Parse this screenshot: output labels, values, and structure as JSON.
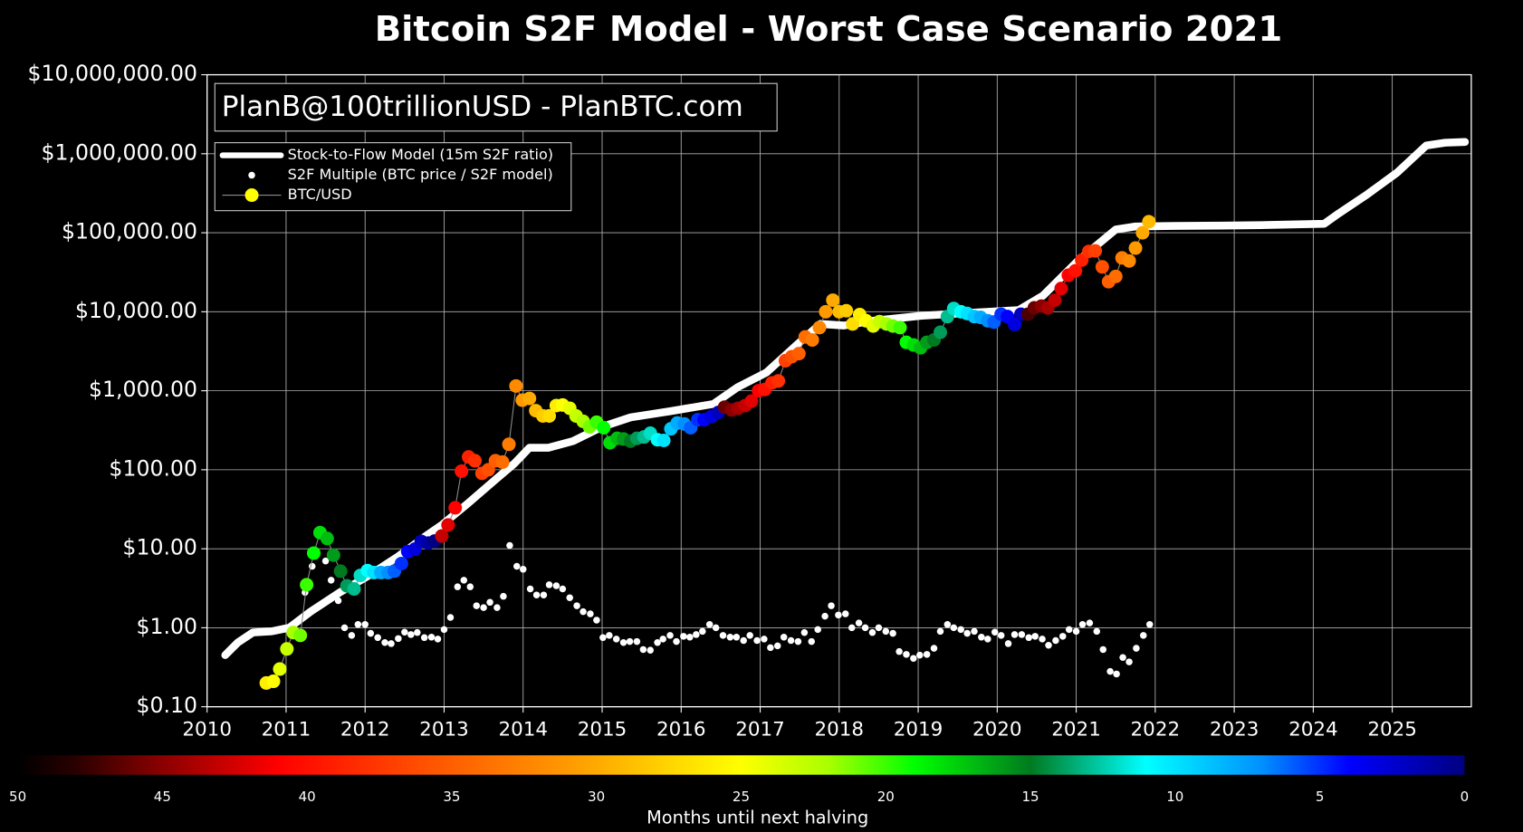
{
  "chart_data": [
    {
      "type": "s2f",
      "title": "Bitcoin S2F Model - Worst Case Scenario 2021",
      "annotation": "PlanB@100trillionUSD - PlanBTC.com",
      "xlim": [
        2010,
        2026
      ],
      "xticks": [
        2010,
        2011,
        2012,
        2013,
        2014,
        2015,
        2016,
        2017,
        2018,
        2019,
        2020,
        2021,
        2022,
        2023,
        2024,
        2025
      ],
      "ylim": [
        0.1,
        10000000
      ],
      "log_y": true,
      "yticks": [
        {
          "value": 0.1,
          "label": "$0.10"
        },
        {
          "value": 1,
          "label": "$1.00"
        },
        {
          "value": 10,
          "label": "$10.00"
        },
        {
          "value": 100,
          "label": "$100.00"
        },
        {
          "value": 1000,
          "label": "$1,000.00"
        },
        {
          "value": 10000,
          "label": "$10,000.00"
        },
        {
          "value": 100000,
          "label": "$100,000.00"
        },
        {
          "value": 1000000,
          "label": "$1,000,000.00"
        },
        {
          "value": 10000000,
          "label": "$10,000,000.00"
        }
      ],
      "grid": true,
      "legend": "upper left",
      "series": [
        {
          "name": "Stock-to-Flow Model (15m S2F ratio)",
          "style": "line",
          "color": "#ffffff",
          "x": [
            2010.23,
            2010.39,
            2010.58,
            2010.82,
            2011.04,
            2011.31,
            2011.68,
            2012.05,
            2012.42,
            2012.79,
            2012.97,
            2013.28,
            2013.65,
            2013.89,
            2014.08,
            2014.32,
            2014.63,
            2015.0,
            2015.36,
            2015.86,
            2016.41,
            2016.71,
            2017.08,
            2017.45,
            2017.76,
            2018.06,
            2018.43,
            2019.05,
            2019.66,
            2020.27,
            2020.58,
            2021.01,
            2021.5,
            2021.75,
            2022.24,
            2022.85,
            2023.34,
            2024.14,
            2024.32,
            2024.69,
            2025.06,
            2025.43,
            2025.67,
            2025.92
          ],
          "values": [
            0.45,
            0.65,
            0.87,
            0.9,
            1.0,
            1.6,
            2.8,
            4.6,
            8,
            15,
            20,
            36,
            75,
            120,
            190,
            190,
            230,
            350,
            460,
            550,
            680,
            1100,
            1700,
            3700,
            7000,
            6700,
            7700,
            8900,
            9700,
            10500,
            16000,
            43000,
            110000,
            120000,
            122000,
            123000,
            125000,
            130000,
            175000,
            310000,
            575000,
            1270000,
            1380000,
            1410000
          ]
        },
        {
          "name": "S2F Multiple (BTC price / S2F model)",
          "style": "markers",
          "color": "#ffffff",
          "x": [
            2011.24,
            2011.33,
            2011.5,
            2011.57,
            2011.66,
            2011.74,
            2011.83,
            2011.91,
            2012.0,
            2012.07,
            2012.16,
            2012.25,
            2012.33,
            2012.42,
            2012.5,
            2012.58,
            2012.66,
            2012.75,
            2012.84,
            2012.92,
            2013.0,
            2013.08,
            2013.17,
            2013.25,
            2013.33,
            2013.41,
            2013.5,
            2013.58,
            2013.67,
            2013.75,
            2013.83,
            2013.92,
            2014.0,
            2014.09,
            2014.17,
            2014.26,
            2014.33,
            2014.42,
            2014.5,
            2014.59,
            2014.68,
            2014.76,
            2014.85,
            2014.93,
            2015.01,
            2015.09,
            2015.18,
            2015.27,
            2015.35,
            2015.44,
            2015.52,
            2015.61,
            2015.7,
            2015.77,
            2015.86,
            2015.94,
            2016.03,
            2016.11,
            2016.19,
            2016.27,
            2016.36,
            2016.44,
            2016.53,
            2016.62,
            2016.7,
            2016.79,
            2016.87,
            2016.96,
            2017.05,
            2017.13,
            2017.22,
            2017.3,
            2017.39,
            2017.48,
            2017.56,
            2017.65,
            2017.73,
            2017.82,
            2017.9,
            2017.99,
            2018.08,
            2018.16,
            2018.25,
            2018.33,
            2018.42,
            2018.5,
            2018.59,
            2018.68,
            2018.76,
            2018.85,
            2018.94,
            2019.02,
            2019.11,
            2019.2,
            2019.28,
            2019.37,
            2019.45,
            2019.54,
            2019.62,
            2019.71,
            2019.8,
            2019.88,
            2019.97,
            2020.05,
            2020.14,
            2020.22,
            2020.31,
            2020.4,
            2020.48,
            2020.57,
            2020.65,
            2020.74,
            2020.83,
            2020.91,
            2021.0,
            2021.08,
            2021.17,
            2021.26,
            2021.34,
            2021.43,
            2021.51,
            2021.59,
            2021.67,
            2021.76,
            2021.85,
            2021.93
          ],
          "values": [
            2.8,
            6,
            7,
            4,
            2.2,
            1.0,
            0.8,
            1.1,
            1.1,
            0.85,
            0.75,
            0.65,
            0.63,
            0.73,
            0.88,
            0.82,
            0.87,
            0.75,
            0.76,
            0.72,
            0.95,
            1.35,
            3.3,
            4,
            3.3,
            1.9,
            1.8,
            2.1,
            1.8,
            2.5,
            11,
            6,
            5.5,
            3.1,
            2.6,
            2.6,
            3.5,
            3.4,
            3.1,
            2.4,
            1.9,
            1.6,
            1.5,
            1.25,
            0.75,
            0.8,
            0.72,
            0.65,
            0.67,
            0.67,
            0.53,
            0.52,
            0.65,
            0.72,
            0.8,
            0.67,
            0.78,
            0.76,
            0.82,
            0.9,
            1.1,
            1.0,
            0.8,
            0.76,
            0.76,
            0.69,
            0.8,
            0.69,
            0.72,
            0.56,
            0.59,
            0.76,
            0.69,
            0.67,
            0.87,
            0.67,
            0.95,
            1.4,
            1.9,
            1.45,
            1.5,
            1.0,
            1.15,
            1.0,
            0.87,
            1.0,
            0.9,
            0.85,
            0.5,
            0.46,
            0.41,
            0.45,
            0.46,
            0.55,
            0.9,
            1.1,
            1.0,
            0.95,
            0.85,
            0.9,
            0.76,
            0.72,
            0.88,
            0.8,
            0.63,
            0.82,
            0.82,
            0.75,
            0.78,
            0.72,
            0.6,
            0.69,
            0.78,
            0.95,
            0.9,
            1.1,
            1.15,
            0.9,
            0.53,
            0.28,
            0.26,
            0.42,
            0.37,
            0.55,
            0.8,
            1.1
          ]
        },
        {
          "name": "BTC/USD",
          "style": "line+markers",
          "color": "#8c8c8c",
          "legend_marker_color": "#ffff00",
          "x": [
            2010.75,
            2010.84,
            2010.92,
            2011.01,
            2011.09,
            2011.18,
            2011.26,
            2011.35,
            2011.43,
            2011.52,
            2011.6,
            2011.69,
            2011.77,
            2011.86,
            2011.94,
            2012.03,
            2012.11,
            2012.2,
            2012.29,
            2012.37,
            2012.46,
            2012.54,
            2012.63,
            2012.71,
            2012.8,
            2012.88,
            2012.97,
            2013.05,
            2013.14,
            2013.22,
            2013.31,
            2013.39,
            2013.48,
            2013.56,
            2013.65,
            2013.74,
            2013.82,
            2013.91,
            2013.99,
            2014.08,
            2014.16,
            2014.25,
            2014.33,
            2014.42,
            2014.5,
            2014.59,
            2014.67,
            2014.76,
            2014.84,
            2014.93,
            2015.02,
            2015.1,
            2015.19,
            2015.27,
            2015.36,
            2015.44,
            2015.53,
            2015.61,
            2015.7,
            2015.78,
            2015.87,
            2015.95,
            2016.04,
            2016.12,
            2016.21,
            2016.29,
            2016.38,
            2016.47,
            2016.55,
            2016.64,
            2016.72,
            2016.81,
            2016.89,
            2016.98,
            2017.06,
            2017.15,
            2017.23,
            2017.32,
            2017.4,
            2017.49,
            2017.57,
            2017.66,
            2017.75,
            2017.83,
            2017.92,
            2018.0,
            2018.09,
            2018.17,
            2018.26,
            2018.34,
            2018.43,
            2018.51,
            2018.6,
            2018.68,
            2018.77,
            2018.85,
            2018.94,
            2019.03,
            2019.11,
            2019.2,
            2019.28,
            2019.37,
            2019.45,
            2019.54,
            2019.62,
            2019.71,
            2019.79,
            2019.88,
            2019.96,
            2020.05,
            2020.13,
            2020.22,
            2020.3,
            2020.39,
            2020.47,
            2020.56,
            2020.64,
            2020.73,
            2020.81,
            2020.9,
            2020.99,
            2021.07,
            2021.16,
            2021.24,
            2021.33,
            2021.41,
            2021.5,
            2021.58,
            2021.67,
            2021.75,
            2021.84,
            2021.92
          ],
          "values": [
            0.2,
            0.21,
            0.3,
            0.54,
            0.87,
            0.8,
            3.5,
            8.8,
            16,
            13.5,
            8.3,
            5.2,
            3.4,
            3.1,
            4.6,
            5.3,
            5,
            5,
            5,
            5.2,
            6.5,
            9.2,
            9.9,
            12.4,
            11.8,
            12.5,
            14.5,
            20,
            33,
            96,
            145,
            130,
            90,
            100,
            130,
            125,
            210,
            1150,
            760,
            800,
            560,
            480,
            480,
            650,
            660,
            600,
            480,
            410,
            350,
            400,
            340,
            220,
            250,
            245,
            230,
            250,
            260,
            290,
            240,
            235,
            330,
            390,
            380,
            340,
            430,
            430,
            470,
            530,
            620,
            570,
            600,
            650,
            740,
            1000,
            1040,
            1260,
            1330,
            2400,
            2700,
            2950,
            4800,
            4400,
            6300,
            10000,
            14000,
            10000,
            10300,
            7000,
            9200,
            7700,
            6600,
            7500,
            7000,
            6600,
            6300,
            4100,
            3800,
            3500,
            4100,
            4400,
            5500,
            8700,
            11000,
            10000,
            9500,
            8700,
            8500,
            7700,
            7400,
            9300,
            8700,
            6900,
            9300,
            9300,
            11200,
            11800,
            11200,
            14000,
            19700,
            29000,
            33000,
            45000,
            58000,
            59000,
            37000,
            24000,
            28000,
            48000,
            44000,
            64000,
            100000,
            138000
          ],
          "color_values": [
            26,
            25,
            24,
            23,
            22,
            21,
            20,
            19,
            18,
            17,
            16,
            15,
            14,
            13,
            12,
            11,
            10,
            8,
            7,
            6,
            5,
            4,
            3,
            2,
            1,
            0,
            43,
            42,
            41,
            40,
            39,
            38,
            37,
            36,
            35,
            34,
            33,
            32,
            31,
            30,
            29,
            28,
            27,
            26,
            25,
            24,
            23,
            22,
            21,
            20,
            19,
            18,
            17,
            16,
            15,
            14,
            13,
            12,
            11,
            10,
            9,
            8,
            7,
            6,
            5,
            4,
            3,
            2,
            46,
            45,
            44,
            43,
            42,
            41,
            40,
            39,
            38,
            37,
            36,
            35,
            34,
            33,
            32,
            31,
            30,
            29,
            28,
            27,
            26,
            25,
            24,
            23,
            22,
            21,
            20,
            19,
            18,
            17,
            16,
            15,
            14,
            13,
            12,
            11,
            10,
            9,
            8,
            7,
            6,
            5,
            4,
            3,
            2,
            47,
            46,
            45,
            44,
            43,
            42,
            41,
            40,
            39,
            38,
            37,
            36,
            35,
            34,
            33,
            32,
            31,
            30,
            29
          ]
        }
      ]
    },
    {
      "type": "colorbar",
      "xlabel": "Months until next halving",
      "xlim": [
        50,
        0
      ],
      "xticks": [
        50,
        45,
        40,
        35,
        30,
        25,
        20,
        15,
        10,
        5,
        0
      ],
      "colormap": [
        [
          50,
          "#000000"
        ],
        [
          48,
          "#2a0000"
        ],
        [
          45,
          "#8b0000"
        ],
        [
          41,
          "#ff0000"
        ],
        [
          36,
          "#ff5000"
        ],
        [
          31,
          "#ff9900"
        ],
        [
          28,
          "#ffcc00"
        ],
        [
          25,
          "#ffff00"
        ],
        [
          22,
          "#aaff00"
        ],
        [
          19,
          "#00ff00"
        ],
        [
          15,
          "#007a20"
        ],
        [
          11,
          "#00ffff"
        ],
        [
          7,
          "#0090ff"
        ],
        [
          4,
          "#0000ff"
        ],
        [
          0,
          "#000080"
        ]
      ]
    }
  ]
}
